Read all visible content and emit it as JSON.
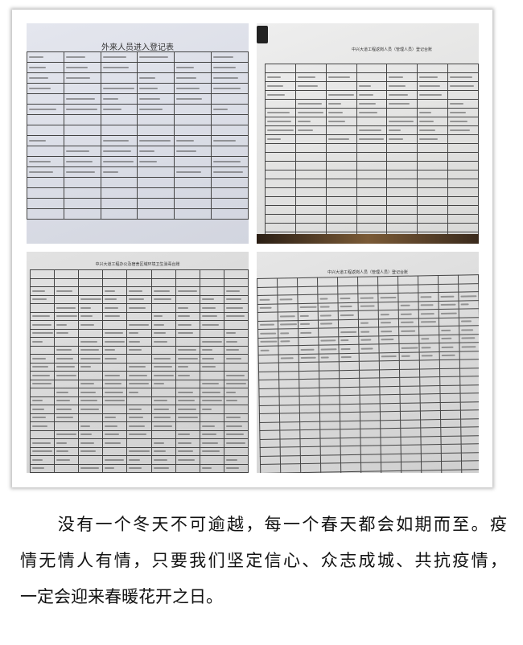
{
  "photos": [
    {
      "title": "外来人员进入登记表",
      "rows": 16,
      "cols": 6,
      "filled": [
        0,
        1,
        2,
        3,
        4,
        5,
        8,
        9,
        10,
        11
      ]
    },
    {
      "title": "中兴大道工程返岗人员（管理人员）登记台账",
      "rows": 20,
      "cols": 7,
      "filled": [
        1,
        2,
        3,
        4,
        5,
        6,
        7,
        8
      ]
    },
    {
      "title": "中兴大道工程办公及宿舍区域环境卫生消毒台账",
      "rows": 24,
      "cols": 9,
      "filled": [
        2,
        3,
        4,
        5,
        6,
        7,
        8,
        9,
        10,
        11,
        12,
        13,
        14,
        15,
        16,
        17,
        18,
        19,
        20,
        21,
        22,
        23
      ]
    },
    {
      "title": "中兴大道工程返岗人员（管理人员）登记台账",
      "rows": 24,
      "cols": 11,
      "filled": [
        2,
        3,
        4,
        5,
        6,
        7,
        8,
        9
      ]
    }
  ],
  "caption": {
    "lines": [
      "　　没有一个冬天不可逾越，每一个春天都会如期而至。疫",
      "情无情人有情，只要我们坚定信心、众志成城、共抗疫情，",
      "一定会迎来春暖花开之日。"
    ]
  }
}
